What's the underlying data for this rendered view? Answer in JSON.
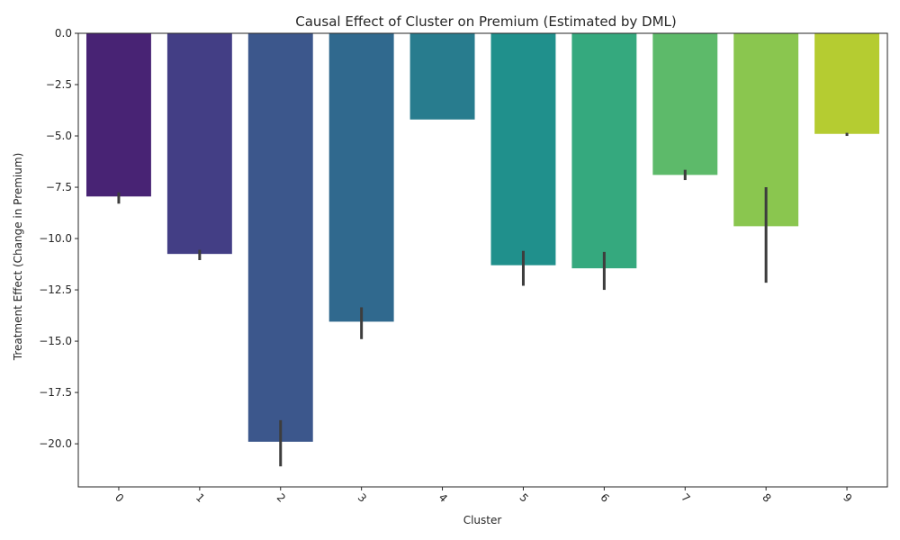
{
  "chart_data": {
    "type": "bar",
    "title": "Causal Effect of Cluster on Premium (Estimated by DML)",
    "xlabel": "Cluster",
    "ylabel": "Treatment Effect (Change in Premium)",
    "categories": [
      "0",
      "1",
      "2",
      "3",
      "4",
      "5",
      "6",
      "7",
      "8",
      "9"
    ],
    "values": [
      -7.95,
      -10.75,
      -19.9,
      -14.05,
      -4.2,
      -11.3,
      -11.45,
      -6.9,
      -9.4,
      -4.9
    ],
    "error_bars": [
      [
        -8.3,
        -7.75
      ],
      [
        -11.05,
        -10.55
      ],
      [
        -21.1,
        -18.85
      ],
      [
        -14.9,
        -13.35
      ],
      [
        -4.2,
        -4.2
      ],
      [
        -12.3,
        -10.6
      ],
      [
        -12.5,
        -10.65
      ],
      [
        -7.15,
        -6.65
      ],
      [
        -12.15,
        -7.5
      ],
      [
        -5.0,
        -4.85
      ]
    ],
    "colors": [
      "#482374",
      "#433e85",
      "#3c578c",
      "#30698e",
      "#287c8e",
      "#20908c",
      "#35a97e",
      "#5dba6a",
      "#8ac64f",
      "#b5cc31"
    ],
    "yticks": [
      "0.0",
      "−2.5",
      "−5.0",
      "−7.5",
      "−10.0",
      "−12.5",
      "−15.0",
      "−17.5",
      "−20.0"
    ],
    "ytick_values": [
      0,
      -2.5,
      -5,
      -7.5,
      -10,
      -12.5,
      -15,
      -17.5,
      -20
    ],
    "ylim": [
      -22.1,
      0
    ],
    "grid": false
  }
}
